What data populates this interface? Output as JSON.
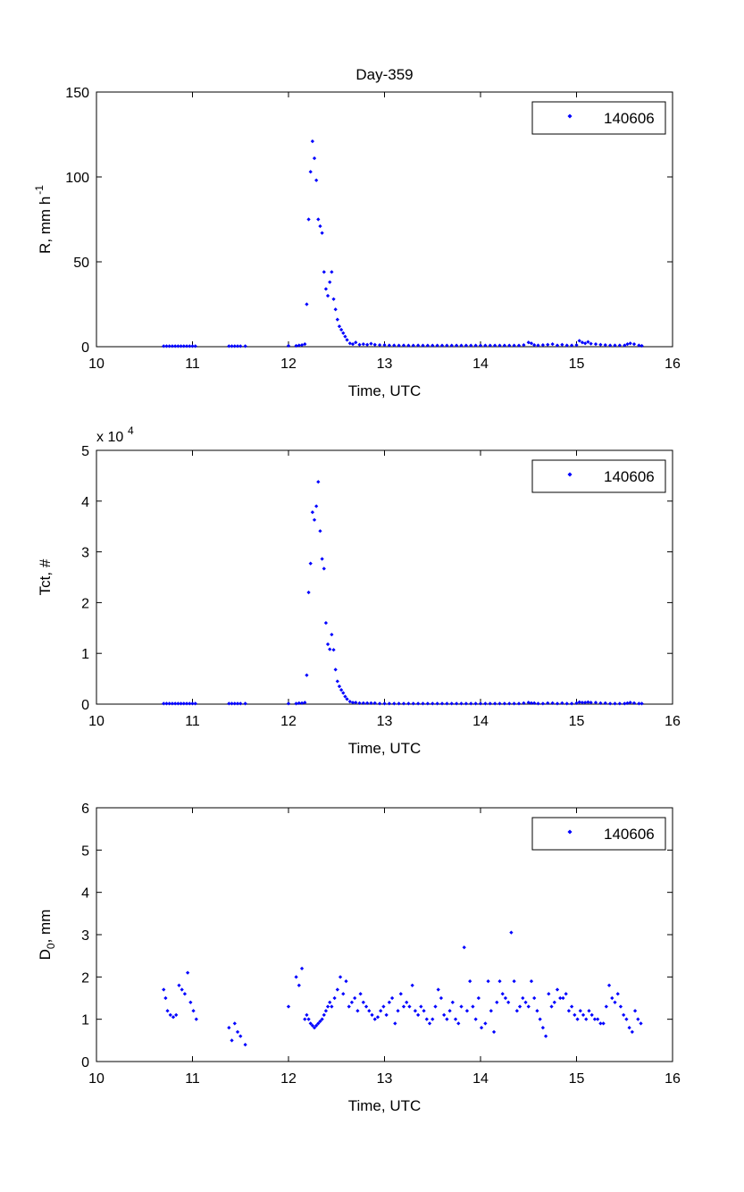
{
  "chart_data": [
    {
      "type": "scatter",
      "title": "Day-359",
      "xlabel": "Time, UTC",
      "ylabel": "R, mm h",
      "ylabel_sup": "-1",
      "xlim": [
        10,
        16
      ],
      "ylim": [
        0,
        150
      ],
      "xticks": [
        "10",
        "11",
        "12",
        "13",
        "14",
        "15",
        "16"
      ],
      "yticks": [
        "0",
        "50",
        "100",
        "150"
      ],
      "grid": false,
      "legend": "top-right",
      "marker_color": "#0000ff",
      "series": [
        {
          "name": "140606",
          "x": [
            10.7,
            10.73,
            10.76,
            10.79,
            10.82,
            10.85,
            10.88,
            10.91,
            10.94,
            10.97,
            11.0,
            11.03,
            11.38,
            11.41,
            11.44,
            11.47,
            11.5,
            11.55,
            12.0,
            12.08,
            12.11,
            12.14,
            12.17,
            12.19,
            12.21,
            12.23,
            12.25,
            12.27,
            12.29,
            12.31,
            12.33,
            12.35,
            12.37,
            12.39,
            12.41,
            12.43,
            12.45,
            12.47,
            12.49,
            12.51,
            12.53,
            12.55,
            12.57,
            12.59,
            12.61,
            12.64,
            12.67,
            12.7,
            12.74,
            12.78,
            12.82,
            12.86,
            12.9,
            12.95,
            13.0,
            13.05,
            13.1,
            13.15,
            13.2,
            13.25,
            13.3,
            13.35,
            13.4,
            13.45,
            13.5,
            13.55,
            13.6,
            13.65,
            13.7,
            13.75,
            13.8,
            13.85,
            13.9,
            13.95,
            14.0,
            14.05,
            14.1,
            14.15,
            14.2,
            14.25,
            14.3,
            14.35,
            14.4,
            14.45,
            14.5,
            14.53,
            14.56,
            14.6,
            14.65,
            14.7,
            14.75,
            14.8,
            14.85,
            14.9,
            14.95,
            15.0,
            15.03,
            15.06,
            15.09,
            15.12,
            15.15,
            15.2,
            15.25,
            15.3,
            15.35,
            15.4,
            15.45,
            15.5,
            15.53,
            15.56,
            15.6,
            15.65,
            15.68
          ],
          "y": [
            0.3,
            0.3,
            0.3,
            0.3,
            0.3,
            0.3,
            0.3,
            0.3,
            0.3,
            0.3,
            0.3,
            0.3,
            0.3,
            0.3,
            0.3,
            0.3,
            0.3,
            0.3,
            0.5,
            0.5,
            0.8,
            1.0,
            1.5,
            25,
            75,
            103,
            121,
            111,
            98,
            75,
            71,
            67,
            44,
            34,
            30,
            38,
            44,
            28,
            22,
            16,
            12,
            10,
            8,
            6,
            4,
            2,
            1.5,
            2.5,
            1.2,
            1.5,
            1.2,
            1.8,
            1.2,
            1.0,
            1.0,
            0.8,
            0.8,
            0.7,
            0.8,
            0.7,
            0.7,
            0.8,
            0.7,
            0.7,
            0.7,
            0.7,
            0.7,
            0.7,
            0.7,
            0.7,
            0.7,
            0.7,
            0.7,
            0.7,
            0.7,
            0.7,
            0.7,
            0.7,
            0.7,
            0.7,
            0.7,
            0.7,
            0.7,
            1.0,
            2.5,
            2.0,
            1.0,
            0.8,
            1.0,
            1.2,
            1.5,
            0.8,
            1.2,
            0.8,
            0.8,
            1.0,
            3.5,
            2.5,
            2.0,
            2.8,
            1.8,
            1.5,
            1.2,
            1.0,
            0.8,
            0.8,
            0.8,
            0.8,
            1.5,
            2.0,
            1.5,
            0.8,
            0.5
          ]
        }
      ]
    },
    {
      "type": "scatter",
      "title": "",
      "xlabel": "Time, UTC",
      "ylabel": "Tct, #",
      "exponent_base": "x 10",
      "exponent_power": "4",
      "xlim": [
        10,
        16
      ],
      "ylim": [
        0,
        5
      ],
      "xticks": [
        "10",
        "11",
        "12",
        "13",
        "14",
        "15",
        "16"
      ],
      "yticks": [
        "0",
        "1",
        "2",
        "3",
        "4",
        "5"
      ],
      "grid": false,
      "legend": "top-right",
      "marker_color": "#0000ff",
      "series": [
        {
          "name": "140606",
          "x": [
            10.7,
            10.73,
            10.76,
            10.79,
            10.82,
            10.85,
            10.88,
            10.91,
            10.94,
            10.97,
            11.0,
            11.03,
            11.38,
            11.41,
            11.44,
            11.47,
            11.5,
            11.55,
            12.0,
            12.08,
            12.11,
            12.14,
            12.17,
            12.19,
            12.21,
            12.23,
            12.25,
            12.27,
            12.29,
            12.31,
            12.33,
            12.35,
            12.37,
            12.39,
            12.41,
            12.43,
            12.45,
            12.47,
            12.49,
            12.51,
            12.53,
            12.55,
            12.57,
            12.59,
            12.61,
            12.64,
            12.67,
            12.7,
            12.74,
            12.78,
            12.82,
            12.86,
            12.9,
            12.95,
            13.0,
            13.05,
            13.1,
            13.15,
            13.2,
            13.25,
            13.3,
            13.35,
            13.4,
            13.45,
            13.5,
            13.55,
            13.6,
            13.65,
            13.7,
            13.75,
            13.8,
            13.85,
            13.9,
            13.95,
            14.0,
            14.05,
            14.1,
            14.15,
            14.2,
            14.25,
            14.3,
            14.35,
            14.4,
            14.45,
            14.5,
            14.53,
            14.56,
            14.6,
            14.65,
            14.7,
            14.75,
            14.8,
            14.85,
            14.9,
            14.95,
            15.0,
            15.03,
            15.06,
            15.09,
            15.12,
            15.15,
            15.2,
            15.25,
            15.3,
            15.35,
            15.4,
            15.45,
            15.5,
            15.53,
            15.56,
            15.6,
            15.65,
            15.68
          ],
          "y": [
            0.01,
            0.01,
            0.01,
            0.01,
            0.01,
            0.01,
            0.01,
            0.01,
            0.01,
            0.01,
            0.01,
            0.01,
            0.01,
            0.01,
            0.01,
            0.01,
            0.01,
            0.01,
            0.01,
            0.01,
            0.02,
            0.02,
            0.03,
            0.57,
            2.2,
            2.77,
            3.78,
            3.63,
            3.9,
            4.38,
            3.41,
            2.86,
            2.67,
            1.6,
            1.18,
            1.08,
            1.37,
            1.07,
            0.68,
            0.45,
            0.35,
            0.28,
            0.22,
            0.15,
            0.1,
            0.05,
            0.03,
            0.03,
            0.02,
            0.02,
            0.02,
            0.02,
            0.02,
            0.01,
            0.01,
            0.01,
            0.01,
            0.01,
            0.01,
            0.01,
            0.01,
            0.01,
            0.01,
            0.01,
            0.01,
            0.01,
            0.01,
            0.01,
            0.01,
            0.01,
            0.01,
            0.01,
            0.01,
            0.01,
            0.01,
            0.01,
            0.01,
            0.01,
            0.01,
            0.01,
            0.01,
            0.01,
            0.01,
            0.02,
            0.03,
            0.02,
            0.02,
            0.01,
            0.01,
            0.02,
            0.02,
            0.01,
            0.02,
            0.01,
            0.01,
            0.02,
            0.04,
            0.03,
            0.03,
            0.04,
            0.03,
            0.03,
            0.02,
            0.02,
            0.01,
            0.01,
            0.01,
            0.01,
            0.02,
            0.03,
            0.02,
            0.01,
            0.01
          ]
        }
      ]
    },
    {
      "type": "scatter",
      "title": "",
      "xlabel": "Time, UTC",
      "ylabel": "D",
      "ylabel_sub": "0",
      "ylabel_suffix": ", mm",
      "xlim": [
        10,
        16
      ],
      "ylim": [
        0,
        6
      ],
      "xticks": [
        "10",
        "11",
        "12",
        "13",
        "14",
        "15",
        "16"
      ],
      "yticks": [
        "0",
        "1",
        "2",
        "3",
        "4",
        "5",
        "6"
      ],
      "grid": false,
      "legend": "top-right",
      "marker_color": "#0000ff",
      "series": [
        {
          "name": "140606",
          "x": [
            10.7,
            10.72,
            10.74,
            10.77,
            10.8,
            10.83,
            10.86,
            10.89,
            10.92,
            10.95,
            10.98,
            11.01,
            11.04,
            11.38,
            11.41,
            11.44,
            11.47,
            11.5,
            11.55,
            12.0,
            12.08,
            12.11,
            12.14,
            12.17,
            12.19,
            12.21,
            12.23,
            12.25,
            12.27,
            12.29,
            12.31,
            12.33,
            12.35,
            12.37,
            12.39,
            12.41,
            12.43,
            12.45,
            12.48,
            12.51,
            12.54,
            12.57,
            12.6,
            12.63,
            12.66,
            12.69,
            12.72,
            12.75,
            12.78,
            12.81,
            12.84,
            12.87,
            12.9,
            12.93,
            12.96,
            12.99,
            13.02,
            13.05,
            13.08,
            13.11,
            13.14,
            13.17,
            13.2,
            13.23,
            13.26,
            13.29,
            13.32,
            13.35,
            13.38,
            13.41,
            13.44,
            13.47,
            13.5,
            13.53,
            13.56,
            13.59,
            13.62,
            13.65,
            13.68,
            13.71,
            13.74,
            13.77,
            13.8,
            13.83,
            13.86,
            13.89,
            13.92,
            13.95,
            13.98,
            14.01,
            14.05,
            14.08,
            14.11,
            14.14,
            14.17,
            14.2,
            14.23,
            14.26,
            14.29,
            14.32,
            14.35,
            14.38,
            14.41,
            14.44,
            14.47,
            14.5,
            14.53,
            14.56,
            14.59,
            14.62,
            14.65,
            14.68,
            14.71,
            14.74,
            14.77,
            14.8,
            14.83,
            14.86,
            14.89,
            14.92,
            14.95,
            14.98,
            15.01,
            15.04,
            15.07,
            15.1,
            15.13,
            15.16,
            15.19,
            15.22,
            15.25,
            15.28,
            15.31,
            15.34,
            15.37,
            15.4,
            15.43,
            15.46,
            15.49,
            15.52,
            15.55,
            15.58,
            15.61,
            15.64,
            15.67
          ],
          "y": [
            1.7,
            1.5,
            1.2,
            1.1,
            1.05,
            1.1,
            1.8,
            1.7,
            1.6,
            2.1,
            1.4,
            1.2,
            1.0,
            0.8,
            0.5,
            0.9,
            0.7,
            0.6,
            0.4,
            1.3,
            2.0,
            1.8,
            2.2,
            1.0,
            1.1,
            1.0,
            0.9,
            0.85,
            0.8,
            0.85,
            0.9,
            0.95,
            1.0,
            1.1,
            1.2,
            1.3,
            1.4,
            1.3,
            1.5,
            1.7,
            2.0,
            1.6,
            1.9,
            1.3,
            1.4,
            1.5,
            1.2,
            1.6,
            1.4,
            1.3,
            1.2,
            1.1,
            1.0,
            1.05,
            1.2,
            1.3,
            1.1,
            1.4,
            1.5,
            0.9,
            1.2,
            1.6,
            1.3,
            1.4,
            1.3,
            1.8,
            1.2,
            1.1,
            1.3,
            1.2,
            1.0,
            0.9,
            1.0,
            1.3,
            1.7,
            1.5,
            1.1,
            1.0,
            1.2,
            1.4,
            1.0,
            0.9,
            1.3,
            2.7,
            1.2,
            1.9,
            1.3,
            1.0,
            1.5,
            0.8,
            0.9,
            1.9,
            1.2,
            0.7,
            1.4,
            1.9,
            1.6,
            1.5,
            1.4,
            3.05,
            1.9,
            1.2,
            1.3,
            1.5,
            1.4,
            1.3,
            1.9,
            1.5,
            1.2,
            1.0,
            0.8,
            0.6,
            1.6,
            1.3,
            1.4,
            1.7,
            1.5,
            1.5,
            1.6,
            1.2,
            1.3,
            1.1,
            1.0,
            1.2,
            1.1,
            1.0,
            1.2,
            1.1,
            1.0,
            1.0,
            0.9,
            0.9,
            1.3,
            1.8,
            1.5,
            1.4,
            1.6,
            1.3,
            1.1,
            1.0,
            0.8,
            0.7,
            1.2,
            1.0,
            0.9
          ]
        }
      ]
    }
  ]
}
